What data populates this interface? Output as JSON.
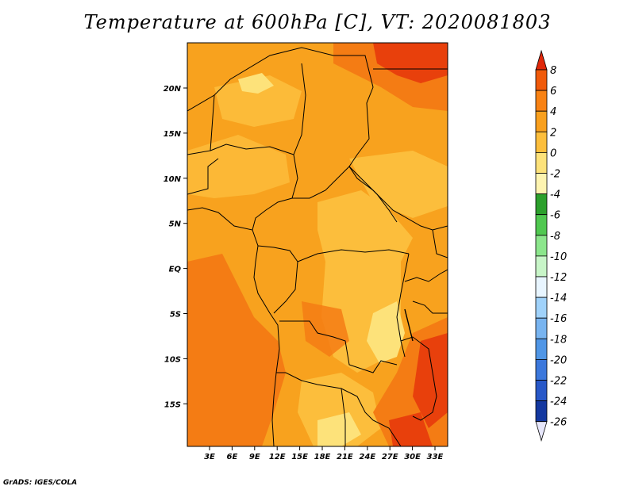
{
  "title": "Temperature at 600hPa [C], VT: 2020081803",
  "credit": "GrADS: IGES/COLA",
  "map": {
    "lat_ticks": [
      "20N",
      "15N",
      "10N",
      "5N",
      "EQ",
      "5S",
      "10S",
      "15S"
    ],
    "lon_ticks": [
      "3E",
      "6E",
      "9E",
      "12E",
      "15E",
      "18E",
      "21E",
      "24E",
      "27E",
      "30E",
      "33E"
    ]
  },
  "colorbar": {
    "labels": [
      "8",
      "6",
      "4",
      "2",
      "0",
      "-2",
      "-4",
      "-6",
      "-8",
      "-10",
      "-12",
      "-14",
      "-16",
      "-18",
      "-20",
      "-22",
      "-24",
      "-26"
    ],
    "colors": [
      "#e0280a",
      "#f05a0a",
      "#f88214",
      "#f9a01e",
      "#fcbe3c",
      "#fde27a",
      "#fef4b0",
      "#2ca02c",
      "#50c850",
      "#8ce68c",
      "#c8f5c8",
      "#e8f5ff",
      "#a0d2fa",
      "#78b4f0",
      "#5096e6",
      "#3c78dc",
      "#2858c8",
      "#1438a0",
      "#0a1e78",
      "#0a0a50"
    ]
  }
}
